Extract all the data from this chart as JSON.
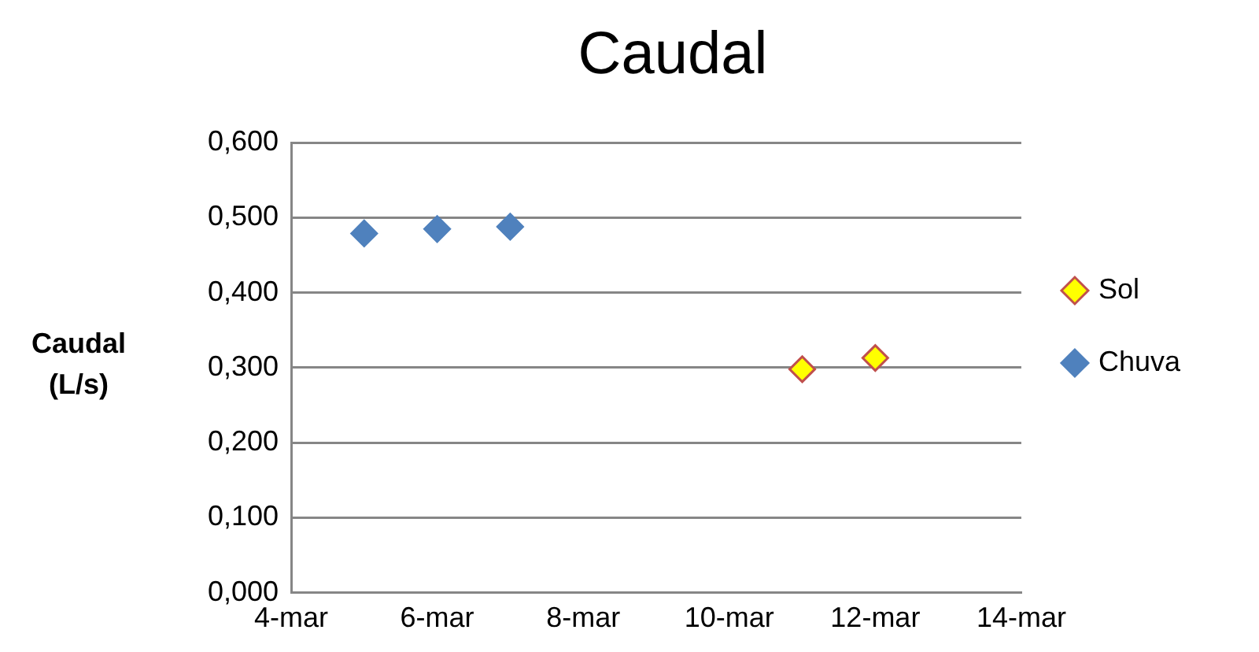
{
  "chart_data": {
    "type": "scatter",
    "title": "Caudal",
    "ylabel": "Caudal (L/s)",
    "series": [
      {
        "name": "Sol",
        "color": "#ffff00",
        "x": [
          "--03-11",
          "--03-12"
        ],
        "values": [
          0.298,
          0.313
        ]
      },
      {
        "name": "Chuva",
        "color": "#4f81bd",
        "x": [
          "--03-05",
          "--03-06",
          "--03-07"
        ],
        "values": [
          0.479,
          0.485,
          0.488
        ]
      }
    ],
    "xlim": [
      "--03-04",
      "--03-14"
    ],
    "xticks": [
      {
        "value": "--03-04",
        "label": "4-mar"
      },
      {
        "value": "--03-06",
        "label": "6-mar"
      },
      {
        "value": "--03-08",
        "label": "8-mar"
      },
      {
        "value": "--03-10",
        "label": "10-mar"
      },
      {
        "value": "--03-12",
        "label": "12-mar"
      },
      {
        "value": "--03-14",
        "label": "14-mar"
      }
    ],
    "ylim": [
      0,
      0.6
    ],
    "yticks": [
      {
        "value": 0,
        "label": "0,000"
      },
      {
        "value": 0.1,
        "label": "0,100"
      },
      {
        "value": 0.2,
        "label": "0,200"
      },
      {
        "value": 0.3,
        "label": "0,300"
      },
      {
        "value": 0.4,
        "label": "0,400"
      },
      {
        "value": 0.5,
        "label": "0,500"
      },
      {
        "value": 0.6,
        "label": "0,600"
      }
    ],
    "grid": "y",
    "legend": "right",
    "marker": "diamond"
  }
}
